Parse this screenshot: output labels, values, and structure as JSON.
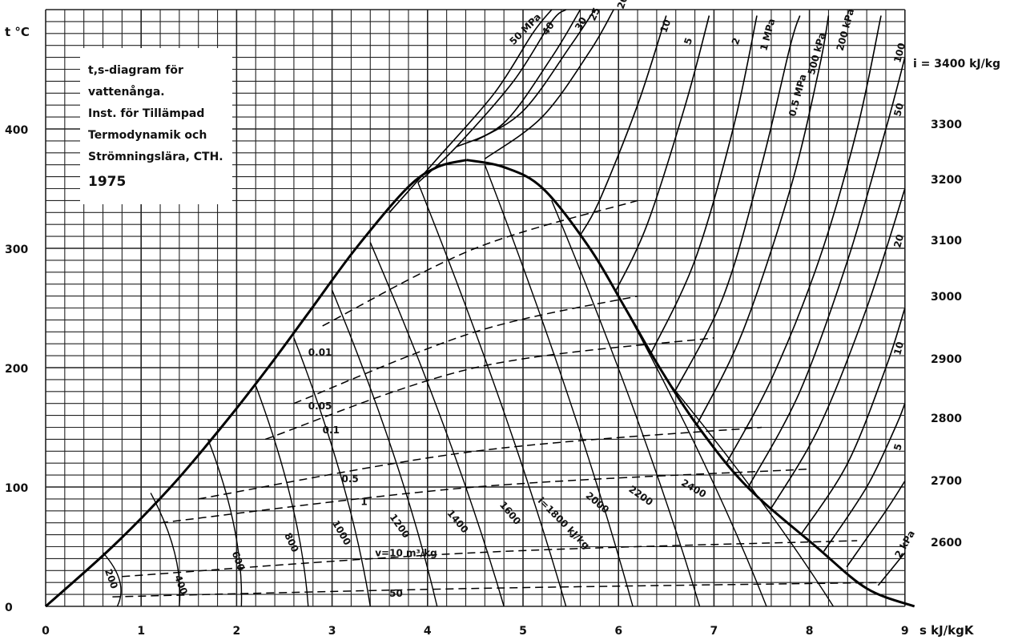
{
  "chart_data": {
    "type": "line",
    "info_box": {
      "lines": [
        "t,s-diagram för",
        "vattenånga.",
        "Inst. för Tillämpad",
        "Termodynamik och",
        "Strömningslära, CTH."
      ],
      "year": "1975"
    },
    "y_axis": {
      "label": "t °C",
      "ticks": [
        0,
        100,
        200,
        300,
        400
      ],
      "ylim": [
        0,
        500
      ]
    },
    "x_axis": {
      "label": "s kJ/kgK",
      "ticks": [
        0,
        1,
        2,
        3,
        4,
        5,
        6,
        7,
        8,
        9
      ],
      "xlim": [
        0,
        9
      ]
    },
    "enthalpy_scale": {
      "top_label": "i = 3400 kJ/kg",
      "values": [
        3300,
        3200,
        3100,
        3000,
        2900,
        2800,
        2700,
        2600
      ]
    },
    "grid": true,
    "saturation_dome": {
      "critical_point": {
        "s": 4.41,
        "t": 374
      },
      "liquid": [
        [
          0,
          0
        ],
        [
          0.7,
          50
        ],
        [
          1.31,
          100
        ],
        [
          1.84,
          150
        ],
        [
          2.33,
          200
        ],
        [
          2.79,
          250
        ],
        [
          3.25,
          300
        ],
        [
          3.78,
          350
        ],
        [
          4.1,
          368
        ],
        [
          4.41,
          374
        ]
      ],
      "vapor": [
        [
          4.41,
          374
        ],
        [
          4.8,
          368
        ],
        [
          5.21,
          350
        ],
        [
          5.7,
          300
        ],
        [
          6.07,
          250
        ],
        [
          6.43,
          200
        ],
        [
          6.84,
          150
        ],
        [
          7.35,
          100
        ],
        [
          8.07,
          50
        ],
        [
          8.6,
          15
        ],
        [
          9.1,
          0
        ]
      ]
    },
    "isenthalp_labels_in_dome": [
      "200",
      "400",
      "600",
      "800",
      "1000",
      "1200",
      "1400",
      "1600",
      "i=1800 kJ/kg",
      "2000",
      "2200",
      "2400"
    ],
    "isochore_labels": [
      "0.01",
      "0.05",
      "0.1",
      "0.5",
      "1",
      "v=10 m³/kg",
      "50"
    ],
    "isobar_labels": [
      "50 MPa",
      "40",
      "30",
      "25",
      "20",
      "10",
      "5",
      "2",
      "1 MPa",
      "0.5 MPa",
      "500 kPa",
      "200 kPa",
      "100",
      "50",
      "20",
      "10",
      "5",
      "2 kPa"
    ],
    "isobar_curves": [
      {
        "name": "50 MPa",
        "points": [
          [
            3.6,
            330
          ],
          [
            4.1,
            375
          ],
          [
            4.7,
            430
          ],
          [
            5.1,
            480
          ],
          [
            5.3,
            500
          ]
        ]
      },
      {
        "name": "40",
        "points": [
          [
            3.9,
            355
          ],
          [
            4.3,
            385
          ],
          [
            4.9,
            440
          ],
          [
            5.3,
            490
          ],
          [
            5.45,
            500
          ]
        ]
      },
      {
        "name": "30",
        "points": [
          [
            4.3,
            385
          ],
          [
            4.8,
            405
          ],
          [
            5.3,
            460
          ],
          [
            5.6,
            500
          ]
        ]
      },
      {
        "name": "25",
        "points": [
          [
            4.5,
            390
          ],
          [
            5.0,
            415
          ],
          [
            5.5,
            470
          ],
          [
            5.75,
            500
          ]
        ]
      },
      {
        "name": "20",
        "points": [
          [
            4.6,
            375
          ],
          [
            5.2,
            410
          ],
          [
            5.7,
            465
          ],
          [
            5.95,
            500
          ]
        ]
      },
      {
        "name": "10",
        "points": [
          [
            5.6,
            311
          ],
          [
            5.8,
            340
          ],
          [
            6.2,
            420
          ],
          [
            6.5,
            495
          ]
        ]
      },
      {
        "name": "5",
        "points": [
          [
            5.97,
            264
          ],
          [
            6.3,
            320
          ],
          [
            6.7,
            420
          ],
          [
            6.95,
            495
          ]
        ]
      },
      {
        "name": "2",
        "points": [
          [
            6.34,
            212
          ],
          [
            6.8,
            290
          ],
          [
            7.2,
            400
          ],
          [
            7.45,
            495
          ]
        ]
      },
      {
        "name": "1 MPa",
        "points": [
          [
            6.59,
            180
          ],
          [
            7.1,
            260
          ],
          [
            7.5,
            370
          ],
          [
            7.8,
            470
          ],
          [
            7.9,
            495
          ]
        ]
      },
      {
        "name": "0.5 MPa",
        "points": [
          [
            6.82,
            152
          ],
          [
            7.3,
            230
          ],
          [
            7.8,
            350
          ],
          [
            8.1,
            450
          ],
          [
            8.2,
            495
          ]
        ]
      },
      {
        "name": "200 kPa",
        "points": [
          [
            7.13,
            120
          ],
          [
            7.6,
            190
          ],
          [
            8.1,
            290
          ],
          [
            8.5,
            400
          ],
          [
            8.75,
            495
          ]
        ]
      },
      {
        "name": "100",
        "points": [
          [
            7.36,
            100
          ],
          [
            7.9,
            180
          ],
          [
            8.4,
            290
          ],
          [
            8.8,
            400
          ],
          [
            9.0,
            460
          ]
        ]
      },
      {
        "name": "50",
        "points": [
          [
            7.59,
            81
          ],
          [
            8.1,
            150
          ],
          [
            8.6,
            250
          ],
          [
            9.0,
            350
          ]
        ]
      },
      {
        "name": "20",
        "points": [
          [
            7.91,
            60
          ],
          [
            8.4,
            120
          ],
          [
            8.8,
            200
          ],
          [
            9.0,
            250
          ]
        ]
      },
      {
        "name": "10",
        "points": [
          [
            8.15,
            46
          ],
          [
            8.6,
            100
          ],
          [
            8.9,
            150
          ],
          [
            9.0,
            170
          ]
        ]
      },
      {
        "name": "5",
        "points": [
          [
            8.39,
            33
          ],
          [
            8.8,
            80
          ],
          [
            9.0,
            105
          ]
        ]
      },
      {
        "name": "2 kPa",
        "points": [
          [
            8.72,
            17.5
          ],
          [
            9.0,
            45
          ]
        ]
      }
    ]
  }
}
